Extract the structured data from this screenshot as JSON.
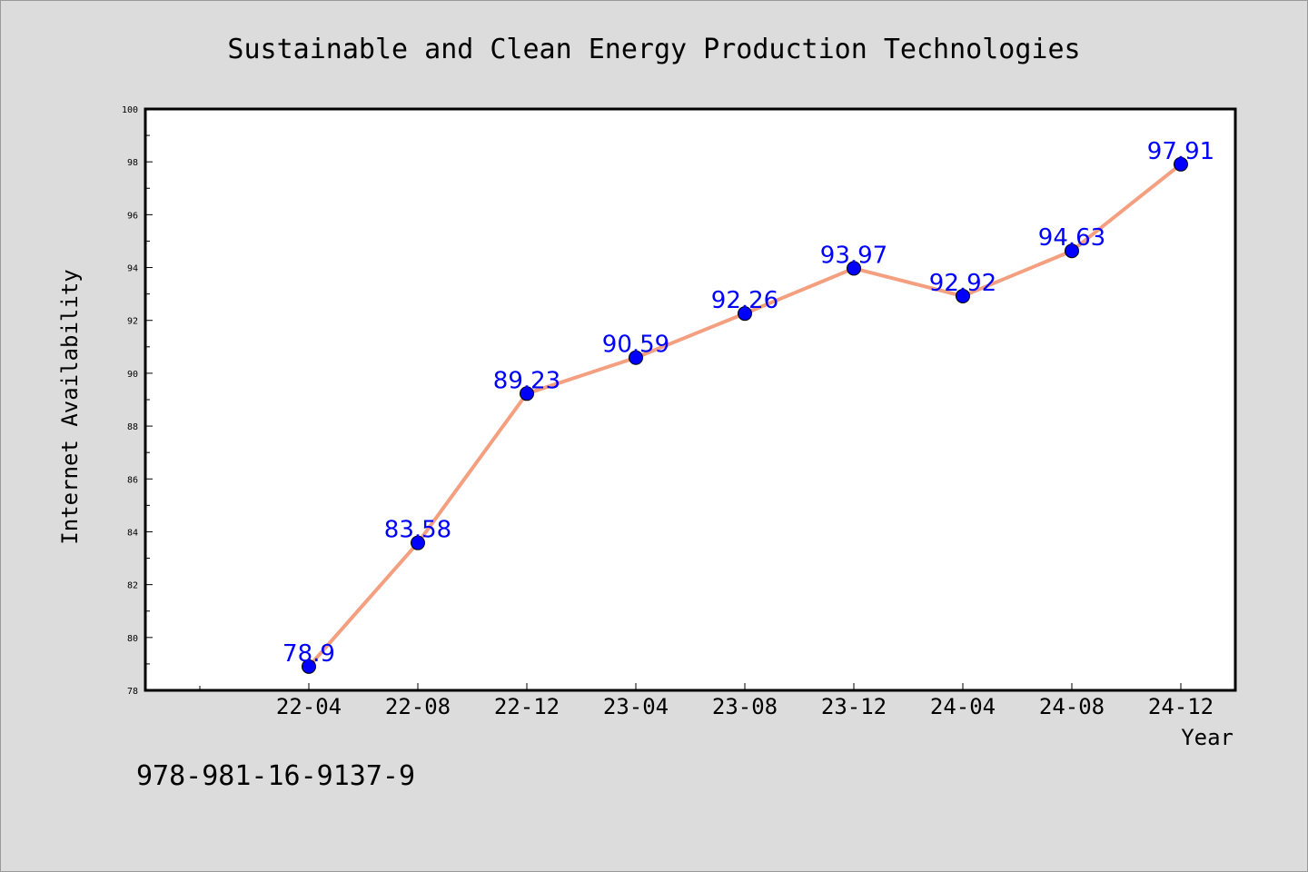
{
  "chart_data": {
    "type": "line",
    "title": "Sustainable and Clean Energy Production Technologies",
    "xlabel": "Year",
    "ylabel": "Internet Availability",
    "categories": [
      "22-04",
      "22-08",
      "22-12",
      "23-04",
      "23-08",
      "23-12",
      "24-04",
      "24-08",
      "24-12"
    ],
    "series": [
      {
        "values": [
          78.9,
          83.58,
          89.23,
          90.59,
          92.26,
          93.97,
          92.92,
          94.63,
          97.91
        ]
      }
    ],
    "data_labels": [
      "78.9",
      "83.58",
      "89.23",
      "90.59",
      "92.26",
      "93.97",
      "92.92",
      "94.63",
      "97.91"
    ],
    "ylim": [
      78,
      100
    ],
    "yticks": [
      "78",
      "80",
      "82",
      "84",
      "86",
      "88",
      "90",
      "92",
      "94",
      "96",
      "98",
      "100"
    ],
    "grid": false,
    "colors": {
      "line": "#f4a080",
      "marker": "#0000ff",
      "data_label": "#0000ff",
      "background": "#dcdcdc",
      "plot_background": "#ffffff"
    }
  },
  "footnote": "978-981-16-9137-9"
}
